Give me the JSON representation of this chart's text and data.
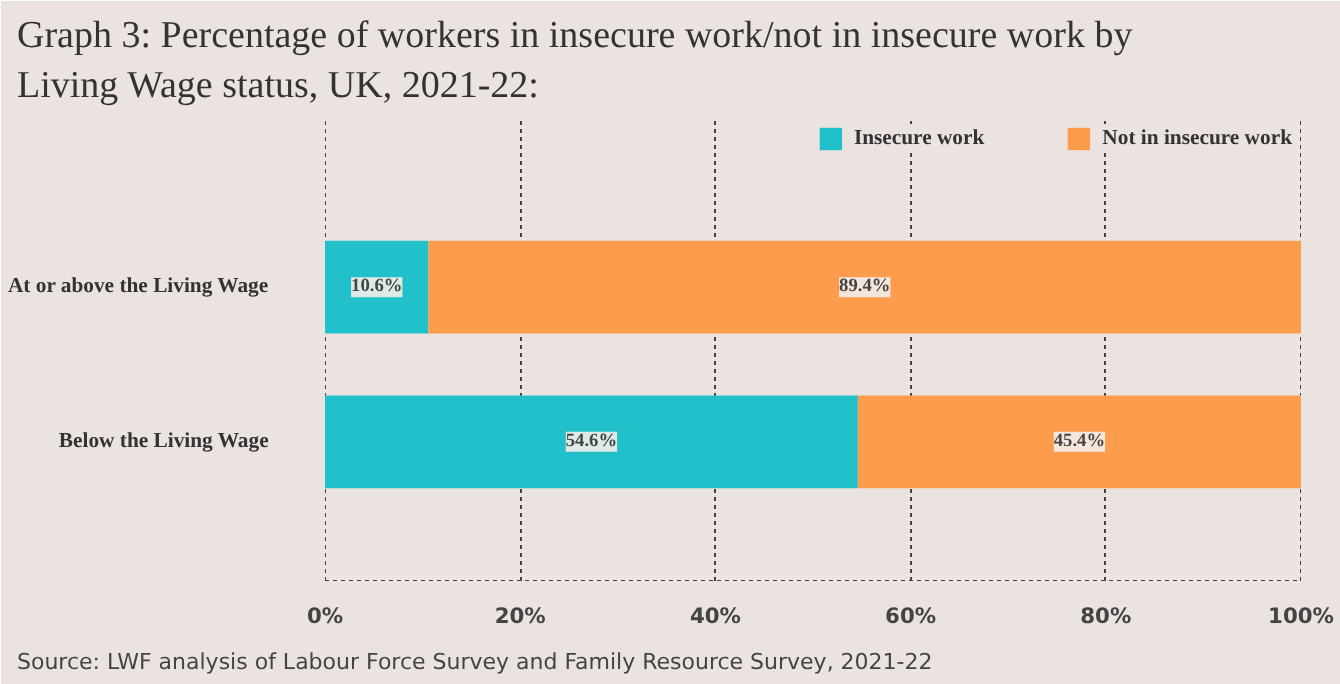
{
  "chart_data": {
    "type": "bar",
    "orientation": "horizontal",
    "stacked": true,
    "title": "Graph 3: Percentage of workers in insecure work/not in insecure work by Living Wage status, UK, 2021-22:",
    "categories": [
      "At or above the Living Wage",
      "Below the Living Wage"
    ],
    "series": [
      {
        "name": "Insecure work",
        "color": "#22c0cb",
        "values": [
          10.6,
          54.6
        ],
        "value_labels": [
          "10.6%",
          "54.6%"
        ]
      },
      {
        "name": "Not in insecure work",
        "color": "#fd9c4d",
        "values": [
          89.4,
          45.4
        ],
        "value_labels": [
          "89.4%",
          "45.4%"
        ]
      }
    ],
    "xlim": [
      0,
      100
    ],
    "xticks": [
      {
        "value": 0,
        "label": "0%"
      },
      {
        "value": 20,
        "label": "20%"
      },
      {
        "value": 40,
        "label": "40%"
      },
      {
        "value": 60,
        "label": "60%"
      },
      {
        "value": 80,
        "label": "80%"
      },
      {
        "value": 100,
        "label": "100%"
      }
    ],
    "grid": "x",
    "legend": "top right",
    "annotations": [
      "Source: LWF analysis of Labour Force Survey and Family Resource Survey, 2021-22"
    ]
  }
}
